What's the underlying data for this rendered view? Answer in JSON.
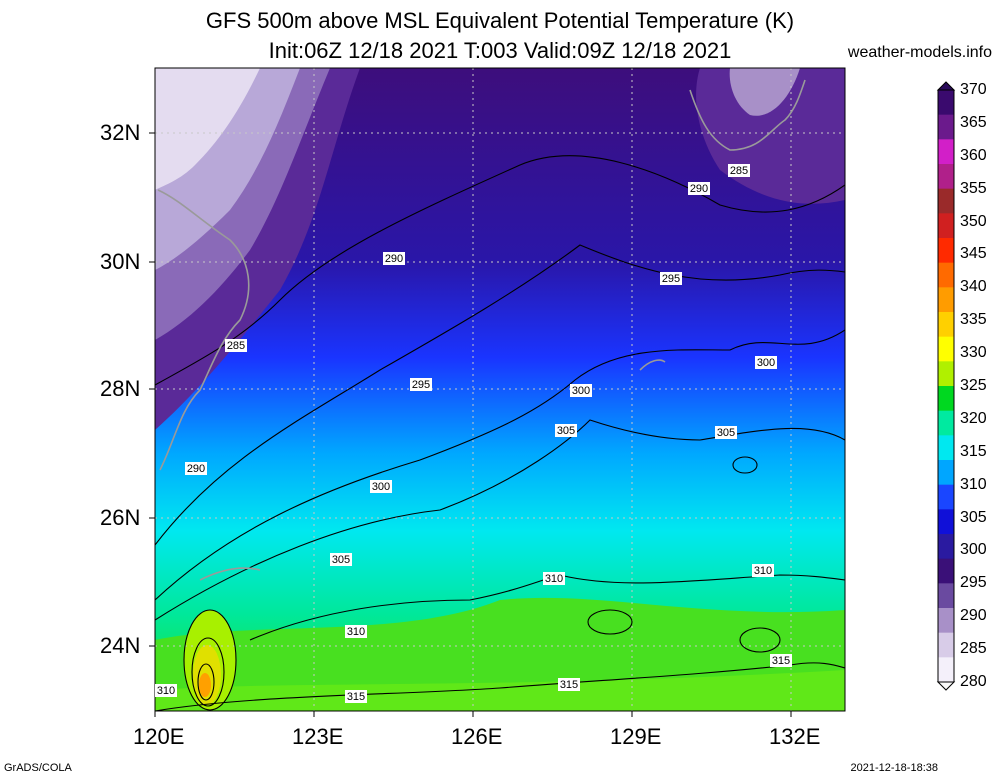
{
  "title_line1": "GFS 500m above MSL Equivalent Potential Temperature (K)",
  "title_line2": "Init:06Z 12/18 2021 T:003 Valid:09Z 12/18 2021",
  "site": "weather-models.info",
  "footer_left": "GrADS/COLA",
  "footer_right": "2021-12-18-18:38",
  "lat_labels": [
    "32N",
    "30N",
    "28N",
    "26N",
    "24N"
  ],
  "lon_labels": [
    "120E",
    "123E",
    "126E",
    "129E",
    "132E"
  ],
  "colorbar": {
    "labels": [
      "370",
      "365",
      "360",
      "355",
      "350",
      "345",
      "340",
      "335",
      "330",
      "325",
      "320",
      "315",
      "310",
      "305",
      "300",
      "295",
      "290",
      "285",
      "280"
    ],
    "colors": [
      "#3a0a6e",
      "#6b1a8c",
      "#d21fc8",
      "#b0208a",
      "#9a2a2a",
      "#d02020",
      "#ff2a00",
      "#ff6a00",
      "#ff9c00",
      "#ffd000",
      "#ffff00",
      "#b0f000",
      "#00d820",
      "#00eaa0",
      "#00e8f0",
      "#00a6ff",
      "#1a46ff",
      "#1010d8",
      "#2a1aa0",
      "#3a1078",
      "#6a4aa0",
      "#a890c8",
      "#d8cce8",
      "#f4f0fa"
    ]
  },
  "contour_labels": [
    "285",
    "285",
    "290",
    "290",
    "290",
    "295",
    "295",
    "300",
    "300",
    "300",
    "305",
    "305",
    "305",
    "310",
    "310",
    "310",
    "310",
    "315",
    "315",
    "315"
  ]
}
